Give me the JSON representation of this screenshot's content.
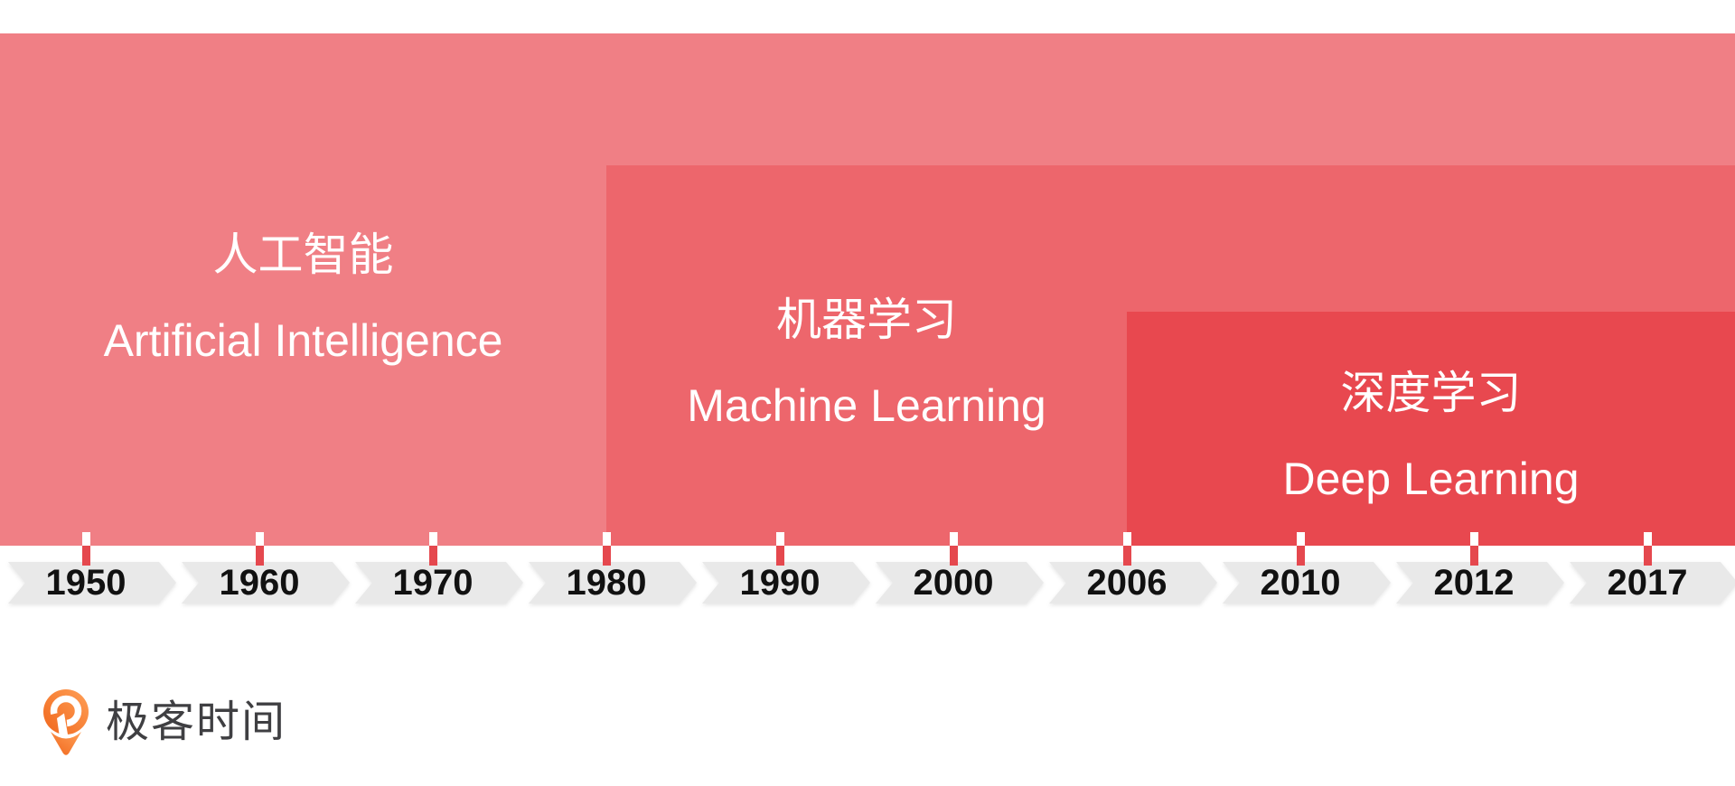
{
  "blocks": [
    {
      "id": "ai",
      "zh": "人工智能",
      "en": "Artificial Intelligence",
      "color": "#F07F85",
      "starts_at_year": "1950"
    },
    {
      "id": "ml",
      "zh": "机器学习",
      "en": "Machine Learning",
      "color": "#ED666C",
      "starts_at_year": "1980"
    },
    {
      "id": "dl",
      "zh": "深度学习",
      "en": "Deep Learning",
      "color": "#E8484F",
      "starts_at_year": "2006"
    }
  ],
  "timeline": {
    "years": [
      "1950",
      "1960",
      "1970",
      "1980",
      "1990",
      "2000",
      "2006",
      "2010",
      "2012",
      "2017"
    ],
    "band_color": "#E9E9E9",
    "tick_color": "#E5484E",
    "year_text_color": "#111111"
  },
  "logo": {
    "text": "极客时间",
    "text_color": "#3F3F42",
    "orange_light": "#FFA057",
    "orange_dark": "#F0661C"
  }
}
